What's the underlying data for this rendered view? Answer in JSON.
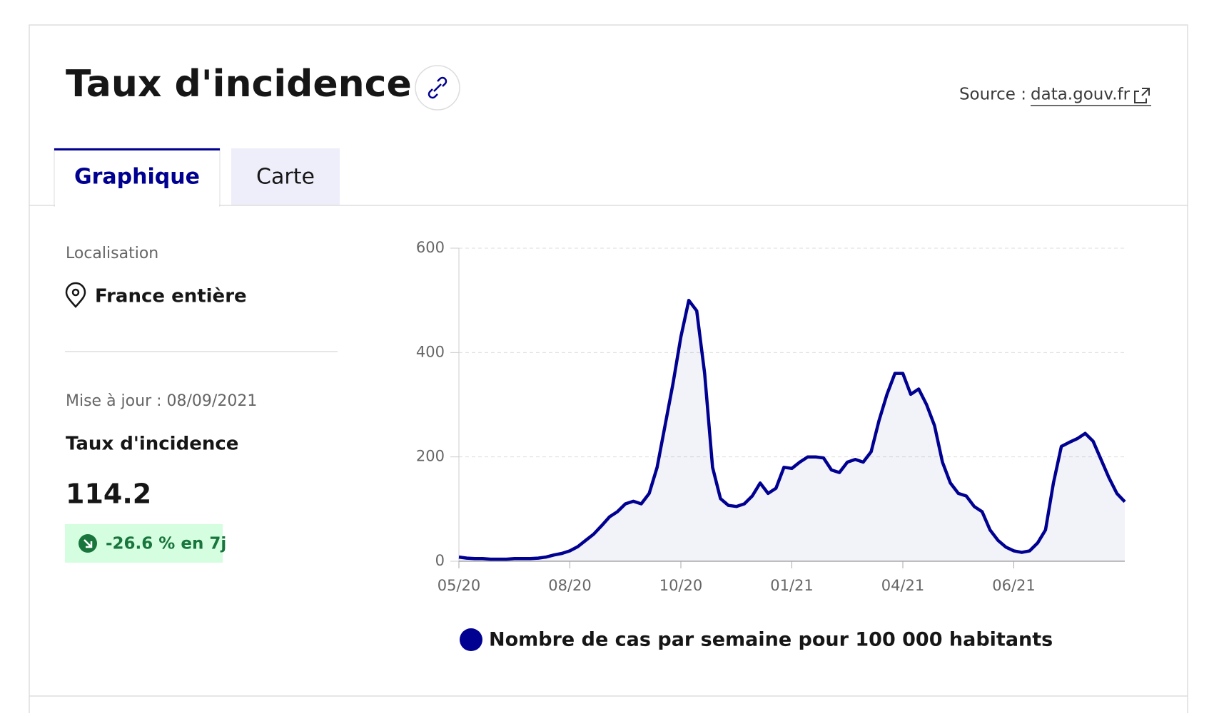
{
  "header": {
    "title": "Taux d'incidence",
    "source_label": "Source :",
    "source_link": "data.gouv.fr"
  },
  "tabs": [
    "Graphique",
    "Carte"
  ],
  "sidebar": {
    "location_label": "Localisation",
    "location": "France entière",
    "updated": "Mise à jour : 08/09/2021",
    "metric": "Taux d'incidence",
    "value": "114.2",
    "change": "-26.6 % en 7j"
  },
  "chart_data": {
    "type": "line",
    "categories": [
      "05/20",
      null,
      null,
      null,
      null,
      null,
      null,
      null,
      null,
      null,
      null,
      null,
      null,
      null,
      "08/20",
      null,
      null,
      null,
      null,
      null,
      null,
      null,
      null,
      null,
      null,
      null,
      null,
      null,
      "10/20",
      null,
      null,
      null,
      null,
      null,
      null,
      null,
      null,
      null,
      null,
      null,
      null,
      null,
      "01/21",
      null,
      null,
      null,
      null,
      null,
      null,
      null,
      null,
      null,
      null,
      null,
      null,
      null,
      "04/21",
      null,
      null,
      null,
      null,
      null,
      null,
      null,
      null,
      null,
      null,
      null,
      null,
      null,
      "06/21",
      null,
      null,
      null,
      null,
      null,
      null,
      null,
      null,
      null,
      null,
      null,
      null,
      null,
      null
    ],
    "series": [
      {
        "name": "Nombre de cas par semaine pour 100 000 habitants",
        "color": "#000091",
        "values": [
          8,
          6,
          5,
          5,
          4,
          4,
          4,
          5,
          5,
          5,
          6,
          8,
          12,
          15,
          20,
          28,
          40,
          52,
          68,
          85,
          95,
          110,
          115,
          110,
          130,
          180,
          260,
          340,
          430,
          500,
          480,
          360,
          180,
          120,
          107,
          105,
          110,
          125,
          150,
          130,
          140,
          180,
          178,
          190,
          200,
          200,
          198,
          175,
          170,
          190,
          195,
          190,
          210,
          270,
          320,
          360,
          360,
          320,
          330,
          300,
          260,
          190,
          150,
          130,
          125,
          105,
          95,
          60,
          40,
          27,
          20,
          17,
          20,
          35,
          60,
          150,
          220,
          228,
          235,
          245,
          230,
          195,
          160,
          130,
          114
        ]
      }
    ],
    "ylim": [
      0,
      600
    ],
    "yticks": [
      0,
      200,
      400,
      600
    ],
    "grid": true
  }
}
